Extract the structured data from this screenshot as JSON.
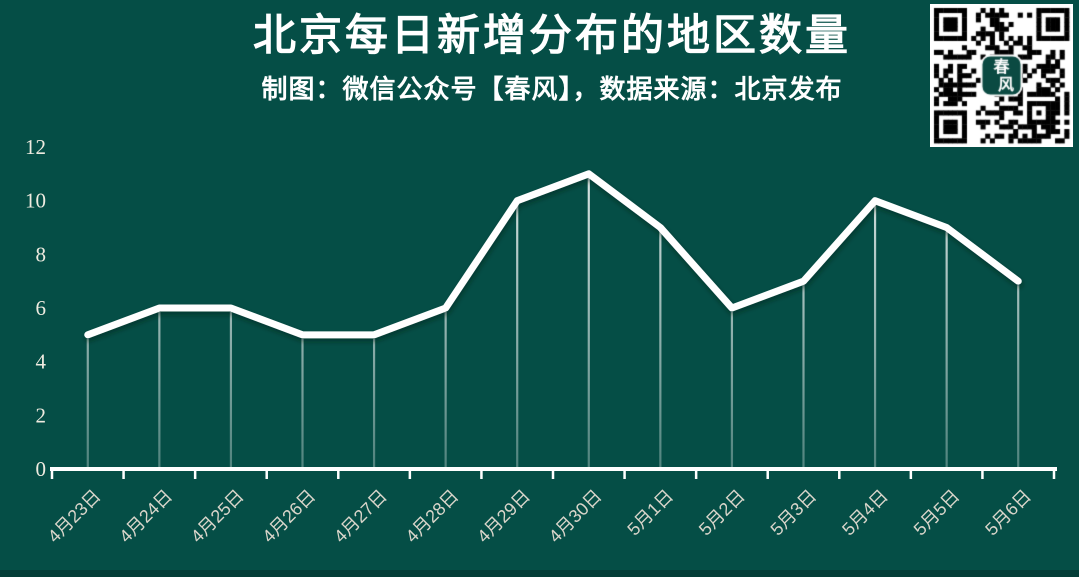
{
  "page": {
    "background": "#054E46"
  },
  "header": {
    "title": "北京每日新增分布的地区数量",
    "subtitle": "制图：微信公众号【春风】，数据来源：北京发布"
  },
  "qr": {
    "logo_text": "春风"
  },
  "chart_data": {
    "type": "line",
    "title": "北京每日新增分布的地区数量",
    "categories": [
      "4月23日",
      "4月24日",
      "4月25日",
      "4月26日",
      "4月27日",
      "4月28日",
      "4月29日",
      "4月30日",
      "5月1日",
      "5月2日",
      "5月3日",
      "5月4日",
      "5月5日",
      "5月6日"
    ],
    "values": [
      5,
      6,
      6,
      5,
      5,
      6,
      10,
      11,
      9,
      6,
      7,
      10,
      9,
      7
    ],
    "xlabel": "",
    "ylabel": "",
    "ylim": [
      0,
      12
    ],
    "yticks": [
      0,
      2,
      4,
      6,
      8,
      10,
      12
    ],
    "grid": false,
    "legend": "none",
    "line_color": "#FFFFFF",
    "axis_color": "#FFFFFF",
    "y_tick_label_color": "#EFEBE0",
    "x_tick_label_color": "#D9D5CA",
    "drop_lines": true
  }
}
